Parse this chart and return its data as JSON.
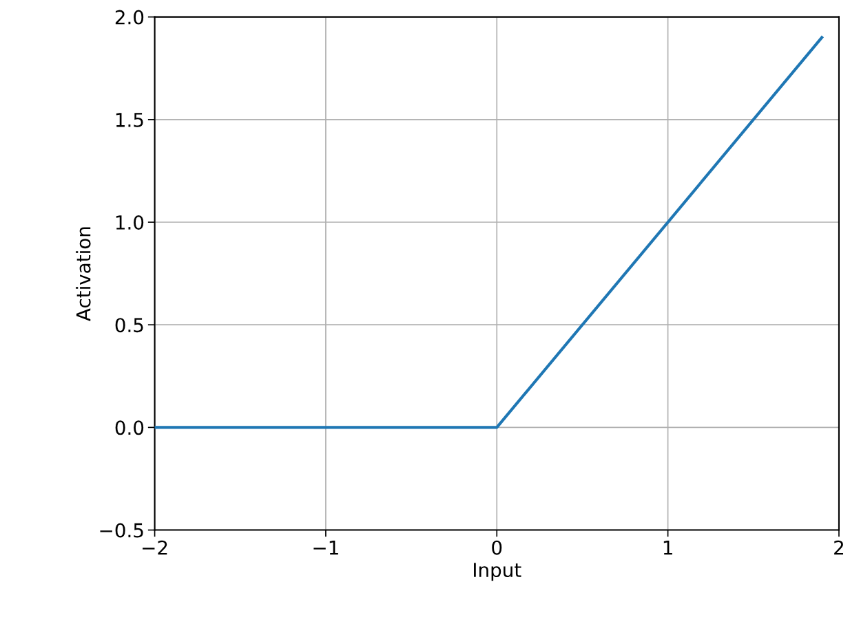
{
  "chart_data": {
    "type": "line",
    "xlabel": "Input",
    "ylabel": "Activation",
    "x": [
      -2,
      0,
      1.9
    ],
    "series": [
      {
        "color": "#1f77b4",
        "values": [
          0,
          0,
          1.9
        ]
      }
    ],
    "xlim": [
      -2,
      2
    ],
    "ylim": [
      -0.5,
      2.0
    ],
    "xticks": [
      {
        "value": -2,
        "label": "−2"
      },
      {
        "value": -1,
        "label": "−1"
      },
      0,
      1,
      2
    ],
    "yticks": [
      {
        "value": -0.5,
        "label": "−0.5"
      },
      {
        "value": 0,
        "label": "0.0"
      },
      {
        "value": 0.5,
        "label": "0.5"
      },
      {
        "value": 1,
        "label": "1.0"
      },
      {
        "value": 1.5,
        "label": "1.5"
      },
      {
        "value": 2,
        "label": "2.0"
      }
    ],
    "grid": true,
    "marker": "none",
    "line_style": "solid"
  }
}
